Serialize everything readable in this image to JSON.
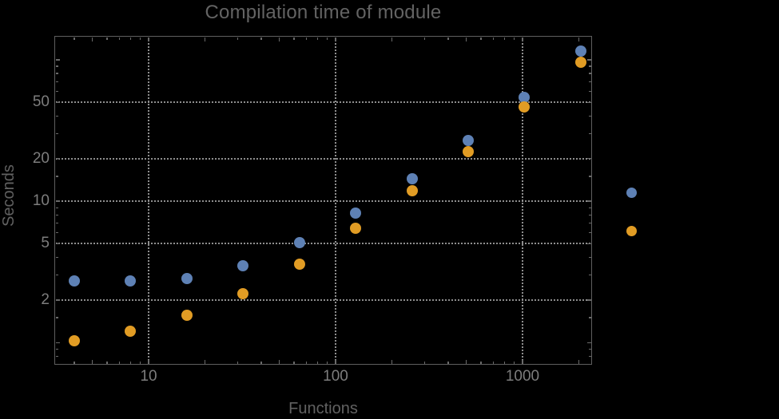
{
  "chart_data": {
    "type": "scatter",
    "title": "Compilation time of module",
    "xlabel": "Functions",
    "ylabel": "Seconds",
    "grid": "dotted",
    "x": [
      4,
      8,
      16,
      32,
      64,
      128,
      256,
      512,
      1024,
      2048
    ],
    "series": [
      {
        "name": "series-1-blue",
        "color": "#5E81B5",
        "values": [
          2.72,
          2.72,
          2.84,
          3.5,
          5.1,
          8.2,
          14.4,
          26.9,
          54.3,
          115.3
        ]
      },
      {
        "name": "series-2-orange",
        "color": "#E19C24",
        "values": [
          1.03,
          1.2,
          1.56,
          2.22,
          3.6,
          6.44,
          11.9,
          22.4,
          46.4,
          96.1
        ]
      }
    ],
    "x_axis": {
      "label": "Functions",
      "scale": "log",
      "range": [
        3.13,
        2354
      ],
      "labeled_ticks": [
        10,
        100,
        1000
      ],
      "tick_labels": [
        "10",
        "100",
        "1000"
      ],
      "unlabeled_major_ticks": [
        5,
        20,
        50,
        200,
        500,
        2000
      ],
      "minor_ticks": [
        4,
        6,
        7,
        8,
        9,
        30,
        40,
        60,
        70,
        80,
        90,
        300,
        400,
        600,
        700,
        800,
        900
      ],
      "gridlines": [
        10,
        100,
        1000
      ]
    },
    "y_axis": {
      "label": "Seconds",
      "scale": "log",
      "range": [
        0.698,
        147.6
      ],
      "labeled_ticks": [
        2,
        5,
        10,
        20,
        50
      ],
      "tick_labels": [
        "2",
        "5",
        "10",
        "20",
        "50"
      ],
      "unlabeled_major_ticks": [
        1,
        100
      ],
      "minor_ticks": [
        0.8,
        0.9,
        1.5,
        3,
        4,
        6,
        7,
        8,
        9,
        15,
        30,
        40,
        60,
        70,
        80,
        90
      ],
      "gridlines": [
        2,
        5,
        10,
        20,
        50
      ]
    },
    "legend": {
      "position": "right-center",
      "labels_visible": false,
      "markers": [
        {
          "color": "#5E81B5"
        },
        {
          "color": "#E19C24"
        }
      ]
    }
  },
  "colors": {
    "background": "#000000",
    "frame": "#5f5f5f",
    "gridline": "#8e8e8e",
    "tick": "#6a6a6a",
    "tick_label": "#7d7d7d",
    "title": "#636363",
    "axis_label": "#616161",
    "series1": "#5E81B5",
    "series2": "#E19C24"
  }
}
